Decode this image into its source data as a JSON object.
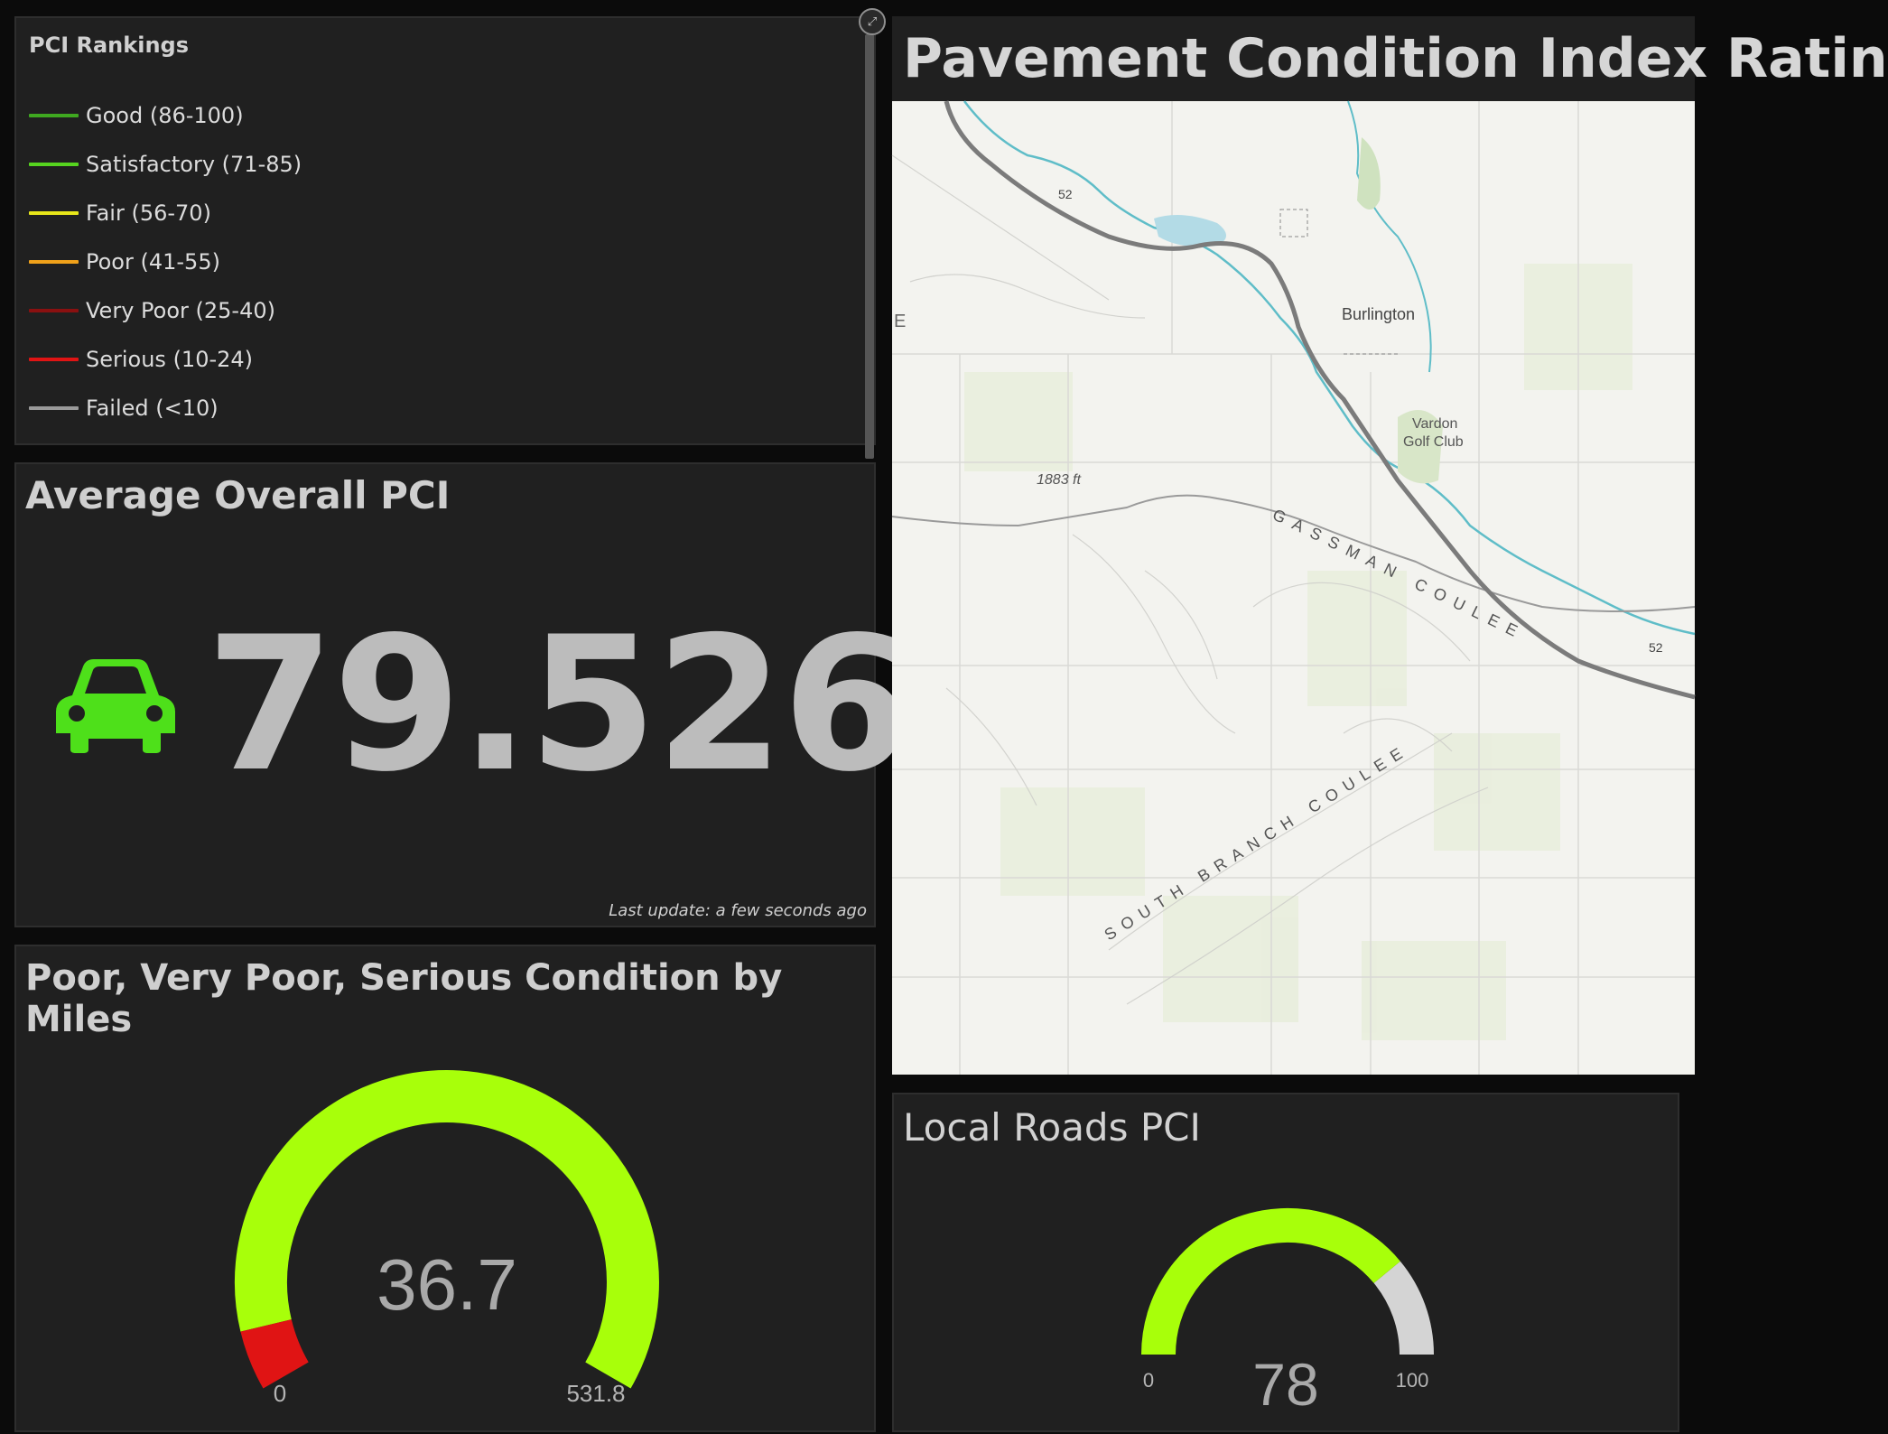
{
  "legend": {
    "title": "PCI Rankings",
    "items": [
      {
        "label": "Good (86-100)",
        "color": "#3fa820"
      },
      {
        "label": "Satisfactory (71-85)",
        "color": "#56d41f"
      },
      {
        "label": "Fair (56-70)",
        "color": "#e7e61a"
      },
      {
        "label": "Poor (41-55)",
        "color": "#f0a11a"
      },
      {
        "label": "Very Poor (25-40)",
        "color": "#8a1010"
      },
      {
        "label": "Serious (10-24)",
        "color": "#e01414"
      },
      {
        "label": "Failed (<10)",
        "color": "#9a9a9a"
      }
    ]
  },
  "average": {
    "title": "Average Overall PCI",
    "value": "79.526",
    "icon": "car-icon",
    "icon_color": "#4ee01a",
    "last_update": "Last update: a few seconds ago"
  },
  "miles_gauge": {
    "title": "Poor, Very Poor, Serious Condition by Miles",
    "value_label": "36.7",
    "min_label": "0",
    "max_label": "531.8",
    "value": 36.7,
    "min": 0,
    "max": 531.8,
    "fill_color": "#e01414",
    "track_color": "#a8ff0a"
  },
  "map": {
    "title": "Pavement Condition Index Ratin",
    "labels": {
      "town": "Burlington",
      "golf_line1": "Vardon",
      "golf_line2": "Golf Club",
      "elevation": "1883 ft",
      "creek1": "GASSMAN COULEE",
      "creek2": "SOUTH BRANCH COULEE",
      "route1": "52",
      "route2": "52",
      "edge": "E"
    }
  },
  "local_gauge": {
    "title": "Local Roads PCI",
    "value_label": "78",
    "min_label": "0",
    "max_label": "100",
    "value": 78,
    "min": 0,
    "max": 100,
    "fill_color": "#a8ff0a",
    "track_color": "#d4d4d4"
  }
}
